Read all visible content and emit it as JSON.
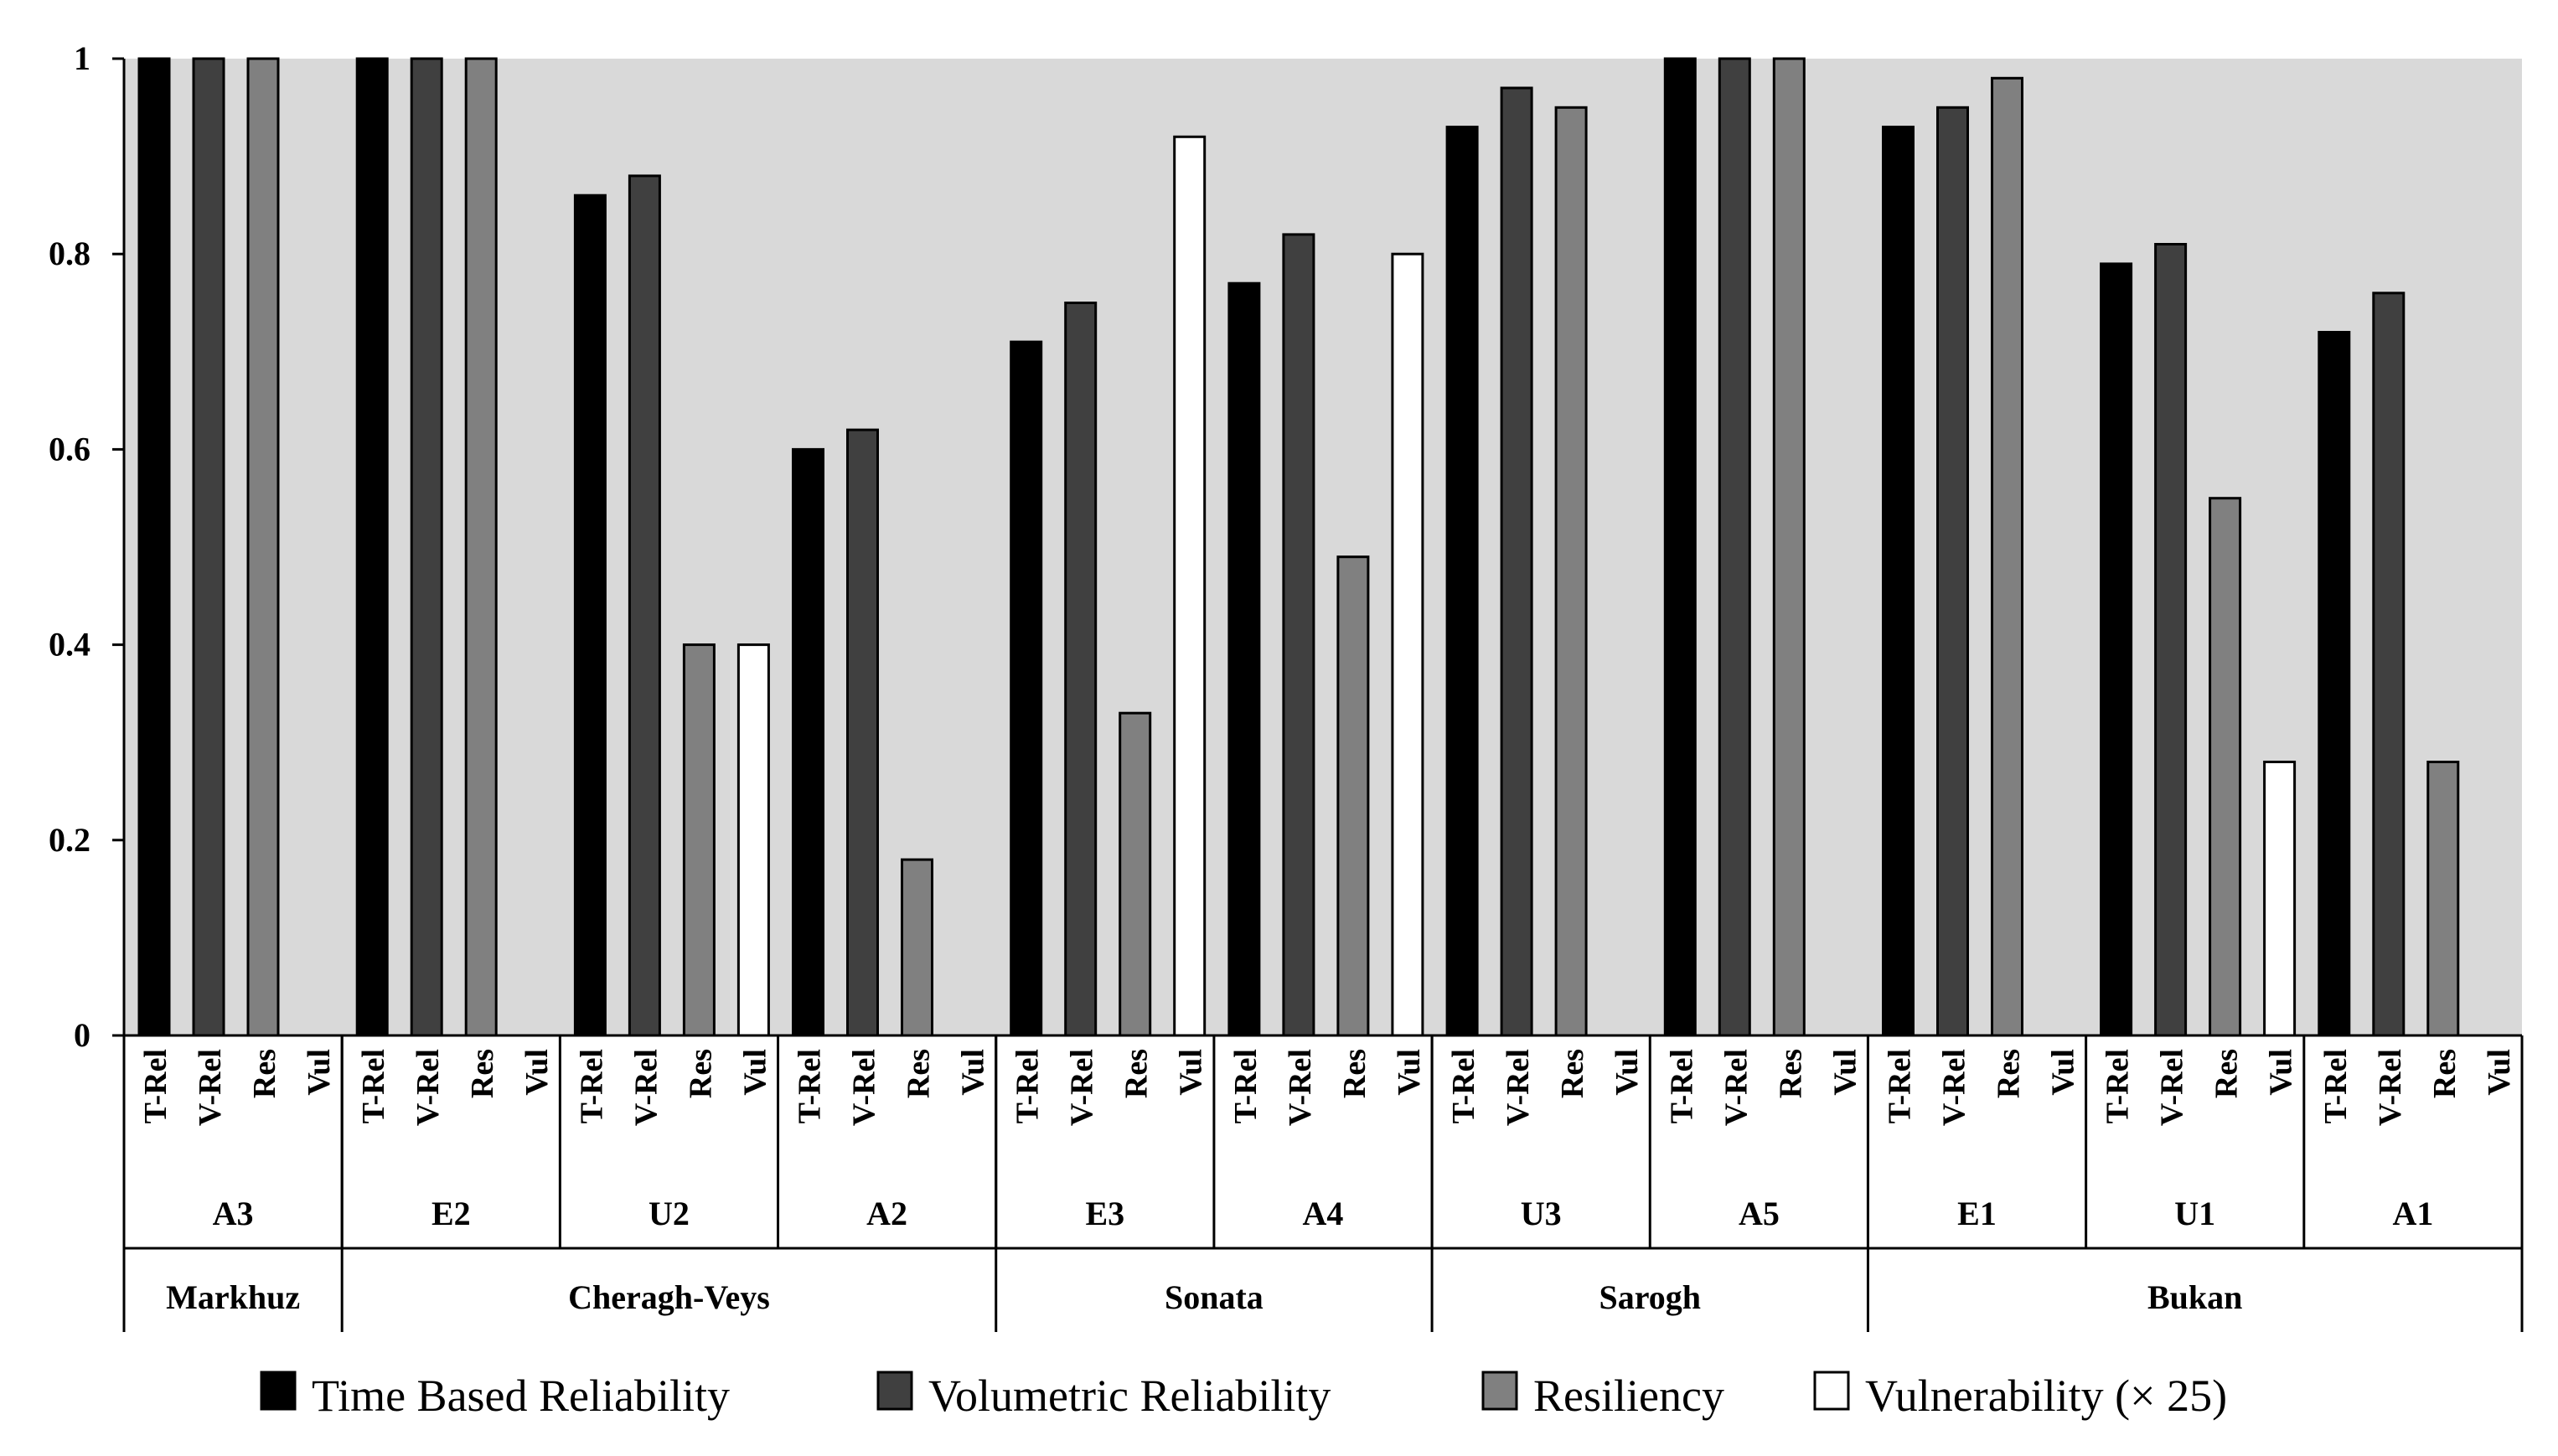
{
  "chart_data": {
    "type": "bar",
    "ylim": [
      0,
      1
    ],
    "yticks": [
      "0",
      "0.2",
      "0.4",
      "0.6",
      "0.8",
      "1"
    ],
    "grid": false,
    "legend_position": "bottom",
    "metric_labels": [
      "T-Rel",
      "V-Rel",
      "Res",
      "Vul"
    ],
    "colors": {
      "plot_bg": "#d9d9d9",
      "T-Rel": "#000000",
      "V-Rel": "#404040",
      "Res": "#808080",
      "Vul": "#ffffff"
    },
    "sites": [
      {
        "name": "Markhuz",
        "scenarios": [
          "A3"
        ]
      },
      {
        "name": "Cheragh-Veys",
        "scenarios": [
          "E2",
          "U2",
          "A2"
        ]
      },
      {
        "name": "Sonata",
        "scenarios": [
          "E3",
          "A4"
        ]
      },
      {
        "name": "Sarogh",
        "scenarios": [
          "U3",
          "A5"
        ]
      },
      {
        "name": "Bukan",
        "scenarios": [
          "E1",
          "U1",
          "A1"
        ]
      }
    ],
    "scenarios": [
      "A3",
      "E2",
      "U2",
      "A2",
      "E3",
      "A4",
      "U3",
      "A5",
      "E1",
      "U1",
      "A1"
    ],
    "series": [
      {
        "name": "Time Based Reliability",
        "key": "T-Rel",
        "values": [
          1.0,
          1.0,
          0.86,
          0.6,
          0.71,
          0.77,
          0.93,
          1.0,
          0.93,
          0.79,
          0.72
        ]
      },
      {
        "name": "Volumetric Reliability",
        "key": "V-Rel",
        "values": [
          1.0,
          1.0,
          0.88,
          0.62,
          0.75,
          0.82,
          0.97,
          1.0,
          0.95,
          0.81,
          0.76
        ]
      },
      {
        "name": "Resiliency",
        "key": "Res",
        "values": [
          1.0,
          1.0,
          0.4,
          0.18,
          0.33,
          0.49,
          0.95,
          1.0,
          0.98,
          0.55,
          0.28
        ]
      },
      {
        "name": "Vulnerability (× 25)",
        "key": "Vul",
        "values": [
          0,
          0,
          0.4,
          0,
          0.92,
          0.8,
          0,
          0,
          0,
          0.28,
          0
        ]
      }
    ]
  }
}
